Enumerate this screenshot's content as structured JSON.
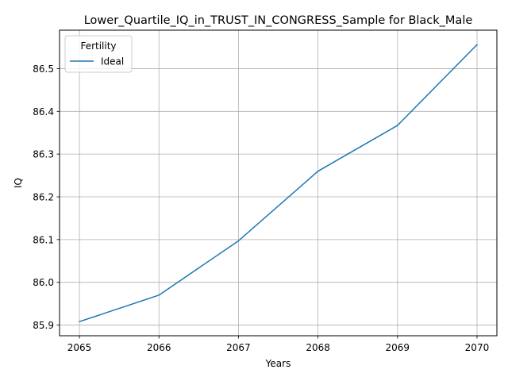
{
  "chart_data": {
    "type": "line",
    "title": "Lower_Quartile_IQ_in_TRUST_IN_CONGRESS_Sample for Black_Male",
    "xlabel": "Years",
    "ylabel": "IQ",
    "x": [
      2065,
      2066,
      2067,
      2068,
      2069,
      2070
    ],
    "x_tick_labels": [
      "2065",
      "2066",
      "2067",
      "2068",
      "2069",
      "2070"
    ],
    "y_tick_labels": [
      "85.9",
      "86.0",
      "86.1",
      "86.2",
      "86.3",
      "86.4",
      "86.5"
    ],
    "y_ticks": [
      85.9,
      86.0,
      86.1,
      86.2,
      86.3,
      86.4,
      86.5
    ],
    "xlim": [
      2064.75,
      2070.25
    ],
    "ylim": [
      85.875,
      86.59
    ],
    "grid": true,
    "legend": {
      "title": "Fertility",
      "placement": "top-left"
    },
    "series": [
      {
        "name": "Ideal",
        "color": "#1f77b4",
        "values": [
          85.908,
          85.97,
          86.097,
          86.26,
          86.367,
          86.556
        ]
      }
    ]
  }
}
